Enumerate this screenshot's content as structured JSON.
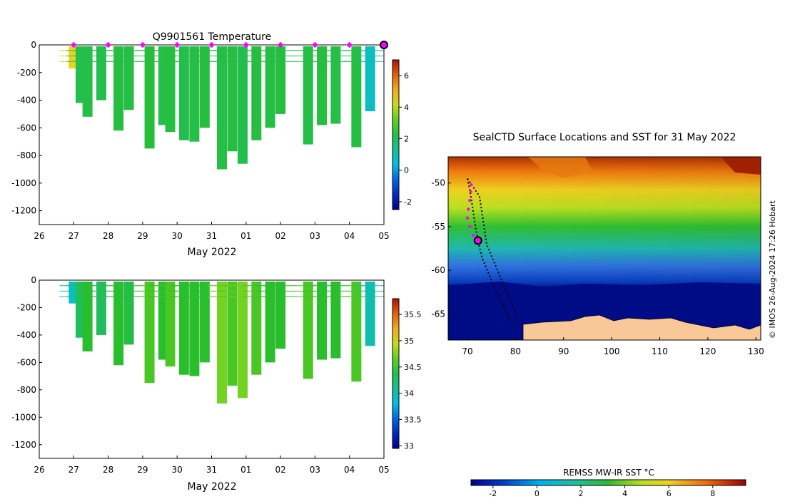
{
  "chart_data": [
    {
      "type": "heatmap",
      "title": "Q9901561  Temperature",
      "xlabel": "May 2022",
      "ylabel": "",
      "x_tick_labels": [
        "26",
        "27",
        "28",
        "29",
        "30",
        "31",
        "01",
        "02",
        "03",
        "04",
        "05"
      ],
      "x_days": [
        26,
        27,
        28,
        29,
        30,
        31,
        32,
        33,
        34,
        35,
        36
      ],
      "xlim": [
        26,
        36
      ],
      "ylim": [
        -1300,
        0
      ],
      "y_ticks": [
        0,
        -200,
        -400,
        -600,
        -800,
        -1000,
        -1200
      ],
      "colorbar": {
        "ticks": [
          6,
          4,
          2,
          0,
          -2
        ],
        "range": [
          -2.5,
          7
        ]
      },
      "surface_markers_days": [
        27,
        28,
        29,
        30,
        31,
        32,
        33,
        34,
        35
      ],
      "latest_marker_day": 36,
      "profiles": [
        {
          "day": 27.0,
          "maxdepth": -170,
          "value": 4.5
        },
        {
          "day": 27.2,
          "maxdepth": -420,
          "value": 2.2
        },
        {
          "day": 27.4,
          "maxdepth": -520,
          "value": 2.3
        },
        {
          "day": 27.8,
          "maxdepth": -400,
          "value": 2.2
        },
        {
          "day": 28.3,
          "maxdepth": -620,
          "value": 2.4
        },
        {
          "day": 28.6,
          "maxdepth": -470,
          "value": 2.3
        },
        {
          "day": 29.2,
          "maxdepth": -750,
          "value": 2.5
        },
        {
          "day": 29.6,
          "maxdepth": -580,
          "value": 2.3
        },
        {
          "day": 29.8,
          "maxdepth": -630,
          "value": 2.4
        },
        {
          "day": 30.2,
          "maxdepth": -690,
          "value": 2.2
        },
        {
          "day": 30.5,
          "maxdepth": -700,
          "value": 2.3
        },
        {
          "day": 30.8,
          "maxdepth": -600,
          "value": 2.4
        },
        {
          "day": 31.3,
          "maxdepth": -900,
          "value": 2.3
        },
        {
          "day": 31.6,
          "maxdepth": -770,
          "value": 2.4
        },
        {
          "day": 31.9,
          "maxdepth": -860,
          "value": 2.2
        },
        {
          "day": 32.3,
          "maxdepth": -690,
          "value": 2.4
        },
        {
          "day": 32.7,
          "maxdepth": -600,
          "value": 2.3
        },
        {
          "day": 33.0,
          "maxdepth": -500,
          "value": 2.4
        },
        {
          "day": 33.8,
          "maxdepth": -720,
          "value": 2.3
        },
        {
          "day": 34.2,
          "maxdepth": -580,
          "value": 2.4
        },
        {
          "day": 34.6,
          "maxdepth": -570,
          "value": 2.3
        },
        {
          "day": 35.2,
          "maxdepth": -740,
          "value": 2.4
        },
        {
          "day": 35.6,
          "maxdepth": -480,
          "value": 0.8
        }
      ]
    },
    {
      "type": "heatmap",
      "title": "",
      "xlabel": "May 2022",
      "ylabel": "",
      "x_tick_labels": [
        "26",
        "27",
        "28",
        "29",
        "30",
        "31",
        "01",
        "02",
        "03",
        "04",
        "05"
      ],
      "x_days": [
        26,
        27,
        28,
        29,
        30,
        31,
        32,
        33,
        34,
        35,
        36
      ],
      "xlim": [
        26,
        36
      ],
      "ylim": [
        -1300,
        0
      ],
      "y_ticks": [
        0,
        -200,
        -400,
        -600,
        -800,
        -1000,
        -1200
      ],
      "colorbar": {
        "ticks": [
          35.5,
          35,
          34.5,
          34,
          33.5,
          33
        ],
        "range": [
          32.95,
          35.8
        ]
      },
      "profiles": [
        {
          "day": 27.0,
          "maxdepth": -170,
          "value": 33.9
        },
        {
          "day": 27.2,
          "maxdepth": -420,
          "value": 34.3
        },
        {
          "day": 27.4,
          "maxdepth": -520,
          "value": 34.5
        },
        {
          "day": 27.8,
          "maxdepth": -400,
          "value": 34.3
        },
        {
          "day": 28.3,
          "maxdepth": -620,
          "value": 34.5
        },
        {
          "day": 28.6,
          "maxdepth": -470,
          "value": 34.4
        },
        {
          "day": 29.2,
          "maxdepth": -750,
          "value": 34.6
        },
        {
          "day": 29.6,
          "maxdepth": -580,
          "value": 34.5
        },
        {
          "day": 29.8,
          "maxdepth": -630,
          "value": 34.6
        },
        {
          "day": 30.2,
          "maxdepth": -690,
          "value": 34.5
        },
        {
          "day": 30.5,
          "maxdepth": -700,
          "value": 34.5
        },
        {
          "day": 30.8,
          "maxdepth": -600,
          "value": 34.5
        },
        {
          "day": 31.3,
          "maxdepth": -900,
          "value": 34.7
        },
        {
          "day": 31.6,
          "maxdepth": -770,
          "value": 34.6
        },
        {
          "day": 31.9,
          "maxdepth": -860,
          "value": 34.7
        },
        {
          "day": 32.3,
          "maxdepth": -690,
          "value": 34.6
        },
        {
          "day": 32.7,
          "maxdepth": -600,
          "value": 34.5
        },
        {
          "day": 33.0,
          "maxdepth": -500,
          "value": 34.5
        },
        {
          "day": 33.8,
          "maxdepth": -720,
          "value": 34.6
        },
        {
          "day": 34.2,
          "maxdepth": -580,
          "value": 34.5
        },
        {
          "day": 34.6,
          "maxdepth": -570,
          "value": 34.5
        },
        {
          "day": 35.2,
          "maxdepth": -740,
          "value": 34.6
        },
        {
          "day": 35.6,
          "maxdepth": -480,
          "value": 34.0
        }
      ]
    },
    {
      "type": "map",
      "title": "SealCTD Surface Locations and SST for 31 May 2022",
      "xlim": [
        66,
        131
      ],
      "ylim": [
        -68,
        -47
      ],
      "x_ticks": [
        70,
        80,
        90,
        100,
        110,
        120,
        130
      ],
      "y_ticks": [
        -50,
        -55,
        -60,
        -65
      ],
      "track": [
        [
          70.0,
          -49.5
        ],
        [
          70.5,
          -50.8
        ],
        [
          71.0,
          -52.5
        ],
        [
          71.5,
          -54.5
        ],
        [
          72.2,
          -56.6
        ],
        [
          73.0,
          -58.5
        ],
        [
          74.5,
          -60.5
        ],
        [
          76.0,
          -62.5
        ],
        [
          77.5,
          -64.0
        ],
        [
          78.5,
          -65.5
        ],
        [
          80.0,
          -66.0
        ]
      ],
      "track2": [
        [
          70.0,
          -49.5
        ],
        [
          72.5,
          -51.5
        ],
        [
          73.2,
          -54.0
        ],
        [
          74.0,
          -57.0
        ],
        [
          75.5,
          -59.0
        ],
        [
          77.0,
          -61.0
        ],
        [
          79.0,
          -63.5
        ],
        [
          80.5,
          -65.5
        ]
      ],
      "recent_positions": [
        [
          70.8,
          -50.2
        ],
        [
          70.7,
          -51.0
        ],
        [
          70.5,
          -52.0
        ],
        [
          70.2,
          -53.0
        ],
        [
          70.0,
          -54.0
        ],
        [
          70.5,
          -55.0
        ],
        [
          71.2,
          -56.0
        ]
      ],
      "latest_position": [
        72.2,
        -56.6
      ],
      "copyright": "© IMOS 26-Aug-2024 17:26 Hobart",
      "colorbar": {
        "label": "REMSS MW-IR SST °C",
        "ticks": [
          -2,
          0,
          2,
          4,
          6,
          8
        ],
        "range": [
          -3,
          9.5
        ]
      }
    }
  ]
}
